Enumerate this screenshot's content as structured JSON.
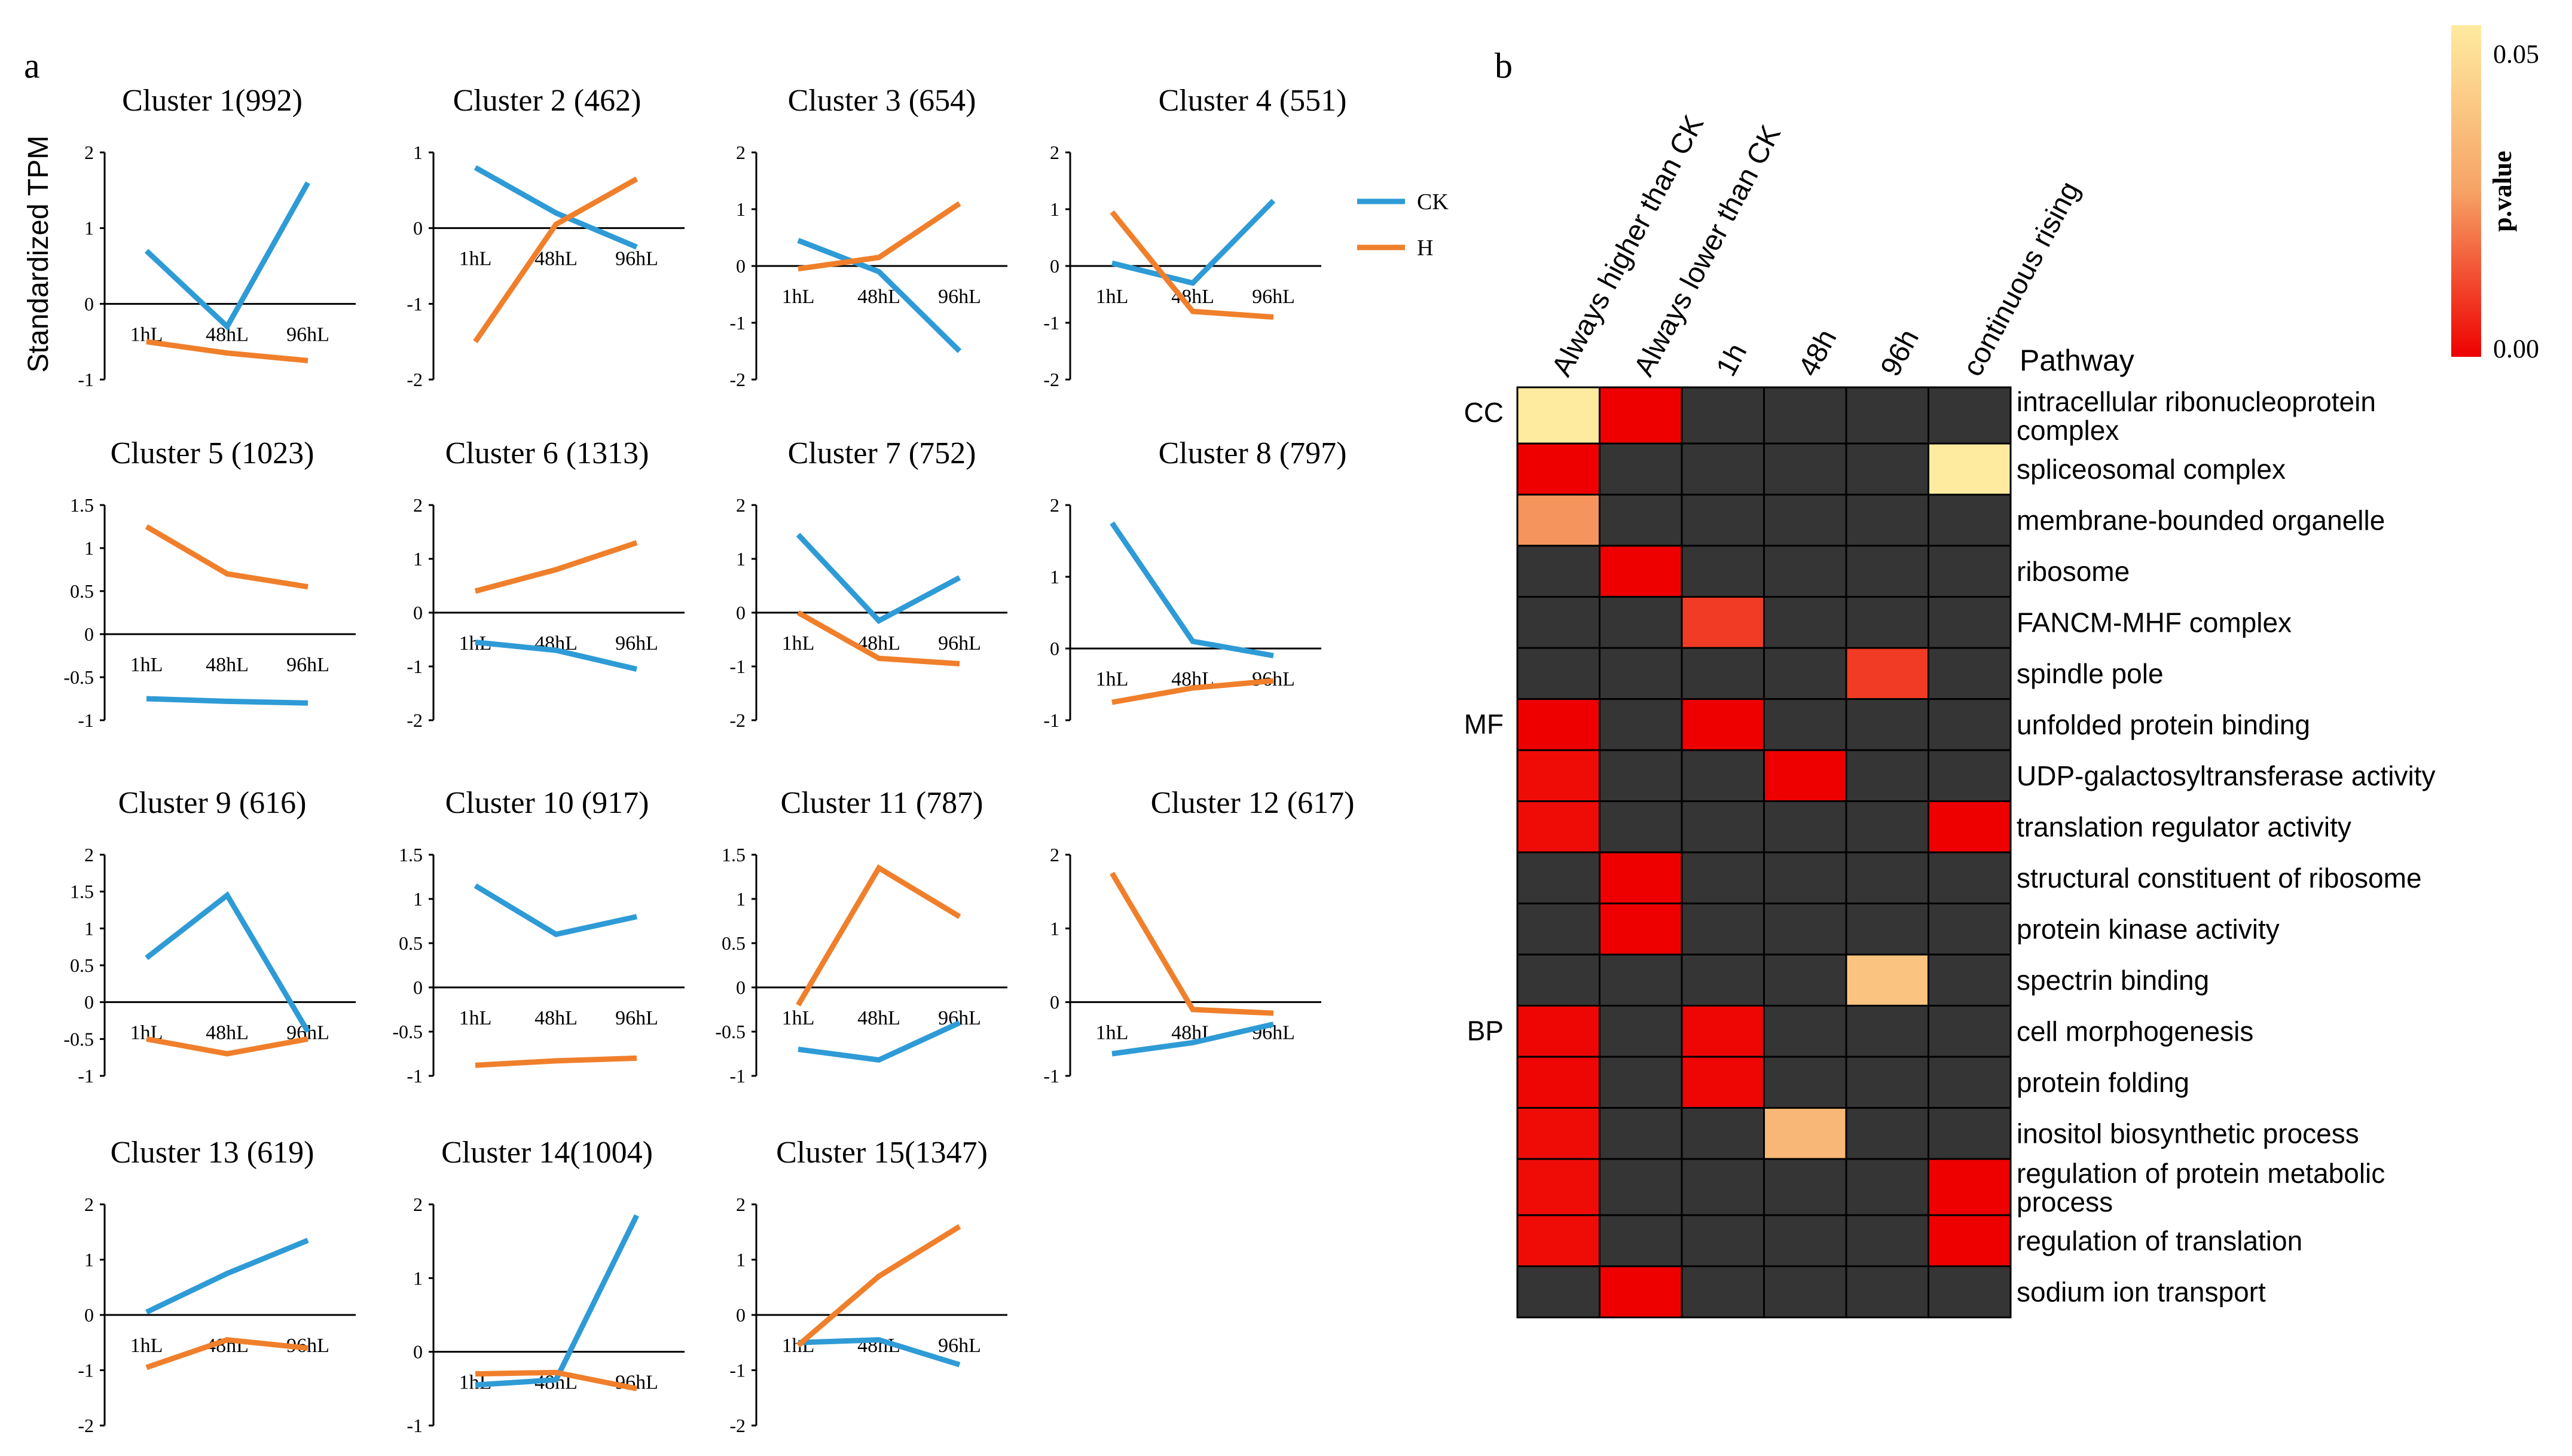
{
  "panel_labels": {
    "a": "a",
    "b": "b"
  },
  "ylabel": "Standardized TPM",
  "legend": [
    {
      "name": "CK",
      "color": "#2E9BD6"
    },
    {
      "name": "H",
      "color": "#F07F2B"
    }
  ],
  "colors": {
    "ck": "#2E9BD6",
    "h": "#F07F2B",
    "cell_empty": "#353535",
    "scale_high": "#FFEBA0",
    "scale_mid": "#F6A366",
    "scale_low": "#EE0000"
  },
  "chart_data": [
    {
      "type": "line",
      "title": "Cluster 1(992)",
      "categories": [
        "1hL",
        "48hL",
        "96hL"
      ],
      "ylim": [
        -1,
        2
      ],
      "yticks": [
        "2",
        "1",
        "0",
        "-1"
      ],
      "series": [
        {
          "name": "CK",
          "values": [
            0.7,
            -0.3,
            1.6
          ]
        },
        {
          "name": "H",
          "values": [
            -0.5,
            -0.65,
            -0.75
          ]
        }
      ]
    },
    {
      "type": "line",
      "title": "Cluster 2 (462)",
      "categories": [
        "1hL",
        "48hL",
        "96hL"
      ],
      "ylim": [
        -2,
        1
      ],
      "yticks": [
        "1",
        "0",
        "-1",
        "-2"
      ],
      "series": [
        {
          "name": "CK",
          "values": [
            0.8,
            0.2,
            -0.25
          ]
        },
        {
          "name": "H",
          "values": [
            -1.5,
            0.05,
            0.65
          ]
        }
      ]
    },
    {
      "type": "line",
      "title": "Cluster 3 (654)",
      "categories": [
        "1hL",
        "48hL",
        "96hL"
      ],
      "ylim": [
        -2,
        2
      ],
      "yticks": [
        "2",
        "1",
        "0",
        "-1",
        "-2"
      ],
      "series": [
        {
          "name": "CK",
          "values": [
            0.45,
            -0.1,
            -1.5
          ]
        },
        {
          "name": "H",
          "values": [
            -0.05,
            0.15,
            1.1
          ]
        }
      ]
    },
    {
      "type": "line",
      "title": "Cluster 4 (551)",
      "categories": [
        "1hL",
        "48hL",
        "96hL"
      ],
      "ylim": [
        -2,
        2
      ],
      "yticks": [
        "2",
        "1",
        "0",
        "-1",
        "-2"
      ],
      "series": [
        {
          "name": "CK",
          "values": [
            0.05,
            -0.3,
            1.15
          ]
        },
        {
          "name": "H",
          "values": [
            0.95,
            -0.8,
            -0.9
          ]
        }
      ]
    },
    {
      "type": "line",
      "title": "Cluster 5 (1023)",
      "categories": [
        "1hL",
        "48hL",
        "96hL"
      ],
      "ylim": [
        -1,
        1.5
      ],
      "yticks": [
        "1.5",
        "1",
        "0.5",
        "0",
        "-0.5",
        "-1"
      ],
      "series": [
        {
          "name": "CK",
          "values": [
            -0.75,
            -0.78,
            -0.8
          ]
        },
        {
          "name": "H",
          "values": [
            1.25,
            0.7,
            0.55
          ]
        }
      ]
    },
    {
      "type": "line",
      "title": "Cluster 6 (1313)",
      "categories": [
        "1hL",
        "48hL",
        "96hL"
      ],
      "ylim": [
        -2,
        2
      ],
      "yticks": [
        "2",
        "1",
        "0",
        "-1",
        "-2"
      ],
      "series": [
        {
          "name": "CK",
          "values": [
            -0.55,
            -0.7,
            -1.05
          ]
        },
        {
          "name": "H",
          "values": [
            0.4,
            0.8,
            1.3
          ]
        }
      ]
    },
    {
      "type": "line",
      "title": "Cluster 7 (752)",
      "categories": [
        "1hL",
        "48hL",
        "96hL"
      ],
      "ylim": [
        -2,
        2
      ],
      "yticks": [
        "2",
        "1",
        "0",
        "-1",
        "-2"
      ],
      "series": [
        {
          "name": "CK",
          "values": [
            1.45,
            -0.15,
            0.65
          ]
        },
        {
          "name": "H",
          "values": [
            0.0,
            -0.85,
            -0.95
          ]
        }
      ]
    },
    {
      "type": "line",
      "title": "Cluster 8 (797)",
      "categories": [
        "1hL",
        "48hL",
        "96hL"
      ],
      "ylim": [
        -1,
        2
      ],
      "yticks": [
        "2",
        "1",
        "0",
        "-1"
      ],
      "series": [
        {
          "name": "CK",
          "values": [
            1.75,
            0.1,
            -0.1
          ]
        },
        {
          "name": "H",
          "values": [
            -0.75,
            -0.55,
            -0.45
          ]
        }
      ]
    },
    {
      "type": "line",
      "title": "Cluster 9 (616)",
      "categories": [
        "1hL",
        "48hL",
        "96hL"
      ],
      "ylim": [
        -1,
        2
      ],
      "yticks": [
        "2",
        "1.5",
        "1",
        "0.5",
        "0",
        "-0.5",
        "-1"
      ],
      "series": [
        {
          "name": "CK",
          "values": [
            0.6,
            1.45,
            -0.4
          ]
        },
        {
          "name": "H",
          "values": [
            -0.5,
            -0.7,
            -0.5
          ]
        }
      ]
    },
    {
      "type": "line",
      "title": "Cluster 10 (917)",
      "categories": [
        "1hL",
        "48hL",
        "96hL"
      ],
      "ylim": [
        -1,
        1.5
      ],
      "yticks": [
        "1.5",
        "1",
        "0.5",
        "0",
        "-0.5",
        "-1"
      ],
      "series": [
        {
          "name": "CK",
          "values": [
            1.15,
            0.6,
            0.8
          ]
        },
        {
          "name": "H",
          "values": [
            -0.88,
            -0.83,
            -0.8
          ]
        }
      ]
    },
    {
      "type": "line",
      "title": "Cluster 11 (787)",
      "categories": [
        "1hL",
        "48hL",
        "96hL"
      ],
      "ylim": [
        -1,
        1.5
      ],
      "yticks": [
        "1.5",
        "1",
        "0.5",
        "0",
        "-0.5",
        "-1"
      ],
      "series": [
        {
          "name": "CK",
          "values": [
            -0.7,
            -0.82,
            -0.4
          ]
        },
        {
          "name": "H",
          "values": [
            -0.2,
            1.35,
            0.8
          ]
        }
      ]
    },
    {
      "type": "line",
      "title": "Cluster 12 (617)",
      "categories": [
        "1hL",
        "48hL",
        "96hL"
      ],
      "ylim": [
        -1,
        2
      ],
      "yticks": [
        "2",
        "1",
        "0",
        "-1"
      ],
      "series": [
        {
          "name": "CK",
          "values": [
            -0.7,
            -0.55,
            -0.3
          ]
        },
        {
          "name": "H",
          "values": [
            1.75,
            -0.1,
            -0.15
          ]
        }
      ]
    },
    {
      "type": "line",
      "title": "Cluster 13 (619)",
      "categories": [
        "1hL",
        "48hL",
        "96hL"
      ],
      "ylim": [
        -2,
        2
      ],
      "yticks": [
        "2",
        "1",
        "0",
        "-1",
        "-2"
      ],
      "series": [
        {
          "name": "CK",
          "values": [
            0.05,
            0.75,
            1.35
          ]
        },
        {
          "name": "H",
          "values": [
            -0.95,
            -0.45,
            -0.6
          ]
        }
      ]
    },
    {
      "type": "line",
      "title": "Cluster 14(1004)",
      "categories": [
        "1hL",
        "48hL",
        "96hL"
      ],
      "ylim": [
        -1,
        2
      ],
      "yticks": [
        "2",
        "1",
        "0",
        "-1"
      ],
      "series": [
        {
          "name": "CK",
          "values": [
            -0.45,
            -0.38,
            1.85
          ]
        },
        {
          "name": "H",
          "values": [
            -0.3,
            -0.28,
            -0.5
          ]
        }
      ]
    },
    {
      "type": "line",
      "title": "Cluster 15(1347)",
      "categories": [
        "1hL",
        "48hL",
        "96hL"
      ],
      "ylim": [
        -2,
        2
      ],
      "yticks": [
        "2",
        "1",
        "0",
        "-1",
        "-2"
      ],
      "series": [
        {
          "name": "CK",
          "values": [
            -0.5,
            -0.45,
            -0.9
          ]
        },
        {
          "name": "H",
          "values": [
            -0.55,
            0.7,
            1.6
          ]
        }
      ]
    },
    {
      "type": "heatmap",
      "columns": [
        "Always higher than CK",
        "Always lower than CK",
        "1h",
        "48h",
        "96h",
        "continuous rising"
      ],
      "pathway_header": "Pathway",
      "groups": [
        {
          "label": "CC",
          "row": 0
        },
        {
          "label": "MF",
          "row": 6
        },
        {
          "label": "BP",
          "row": 12
        }
      ],
      "rows": [
        {
          "label": "intracellular ribonucleoprotein complex",
          "values": [
            0.055,
            0.0,
            null,
            null,
            null,
            null
          ]
        },
        {
          "label": "spliceosomal complex",
          "values": [
            0.0,
            null,
            null,
            null,
            null,
            0.055
          ]
        },
        {
          "label": "membrane-bounded organelle",
          "values": [
            0.025,
            null,
            null,
            null,
            null,
            null
          ]
        },
        {
          "label": "ribosome",
          "values": [
            null,
            0.0,
            null,
            null,
            null,
            null
          ]
        },
        {
          "label": "FANCM-MHF complex",
          "values": [
            null,
            null,
            0.01,
            null,
            null,
            null
          ]
        },
        {
          "label": "spindle pole",
          "values": [
            null,
            null,
            null,
            null,
            0.01,
            null
          ]
        },
        {
          "label": "unfolded protein binding",
          "values": [
            0.0,
            null,
            0.0,
            null,
            null,
            null
          ]
        },
        {
          "label": "UDP-galactosyltransferase activity",
          "values": [
            0.002,
            null,
            null,
            0.0,
            null,
            null
          ]
        },
        {
          "label": "translation regulator activity",
          "values": [
            0.002,
            null,
            null,
            null,
            null,
            0.0
          ]
        },
        {
          "label": "structural constituent of ribosome",
          "values": [
            null,
            0.0,
            null,
            null,
            null,
            null
          ]
        },
        {
          "label": "protein kinase activity",
          "values": [
            null,
            0.0,
            null,
            null,
            null,
            null
          ]
        },
        {
          "label": "spectrin binding",
          "values": [
            null,
            null,
            null,
            null,
            0.04,
            null
          ]
        },
        {
          "label": "cell morphogenesis",
          "values": [
            0.001,
            null,
            0.001,
            null,
            null,
            null
          ]
        },
        {
          "label": "protein folding",
          "values": [
            0.001,
            null,
            0.001,
            null,
            null,
            null
          ]
        },
        {
          "label": "inositol biosynthetic process",
          "values": [
            0.002,
            null,
            null,
            0.035,
            null,
            null
          ]
        },
        {
          "label": "regulation of protein metabolic process",
          "values": [
            0.002,
            null,
            null,
            null,
            null,
            0.0
          ]
        },
        {
          "label": "regulation of translation",
          "values": [
            0.002,
            null,
            null,
            null,
            null,
            0.0
          ]
        },
        {
          "label": "sodium ion transport",
          "values": [
            null,
            0.0,
            null,
            null,
            null,
            null
          ]
        }
      ],
      "colorbar": {
        "label": "p.value",
        "ticks": [
          "0.05",
          "0.00"
        ],
        "range": [
          0,
          0.055
        ]
      }
    }
  ]
}
